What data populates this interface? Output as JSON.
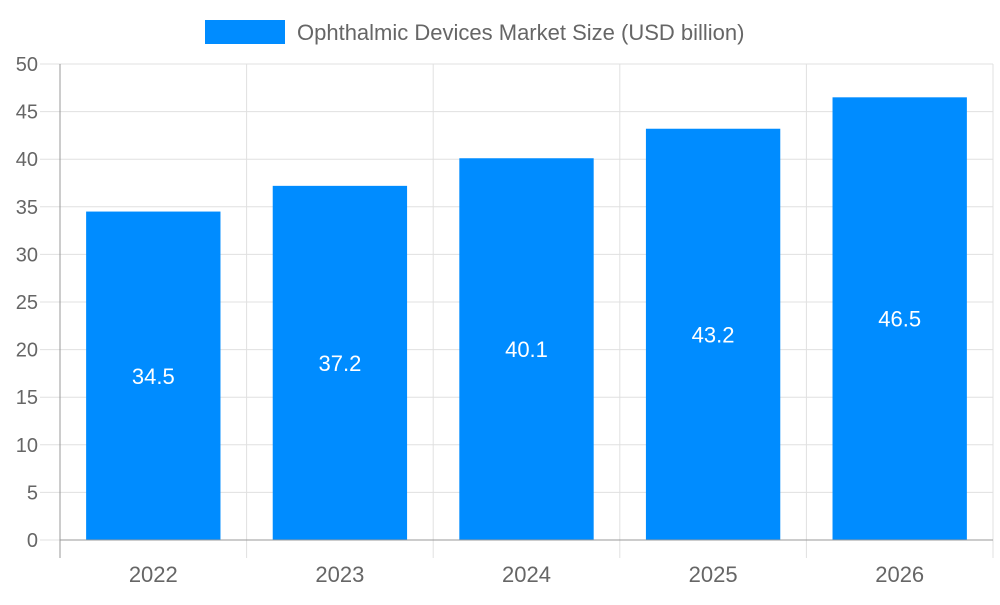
{
  "chart_data": {
    "type": "bar",
    "categories": [
      "2022",
      "2023",
      "2024",
      "2025",
      "2026"
    ],
    "series": [
      {
        "name": "Ophthalmic Devices Market Size (USD billion)",
        "values": [
          34.5,
          37.2,
          40.1,
          43.2,
          46.5
        ],
        "color": "#008cff"
      }
    ],
    "data_labels": [
      "34.5",
      "37.2",
      "40.1",
      "43.2",
      "46.5"
    ],
    "ylim": [
      0,
      50
    ],
    "yticks": [
      "0",
      "5",
      "10",
      "15",
      "20",
      "25",
      "30",
      "35",
      "40",
      "45",
      "50"
    ],
    "grid": true,
    "legend": "top-center",
    "title": "",
    "xlabel": "",
    "ylabel": ""
  }
}
